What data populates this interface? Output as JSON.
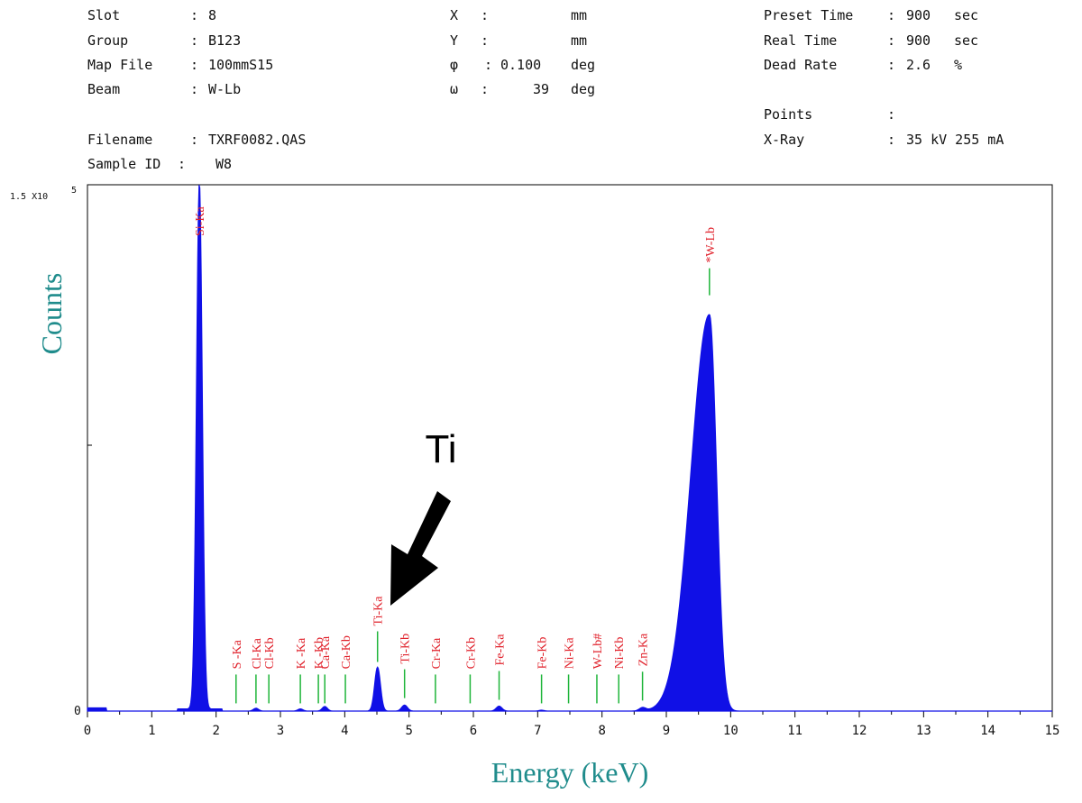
{
  "header": {
    "col1": [
      {
        "label": "Slot",
        "sep": ":",
        "value": "8"
      },
      {
        "label": "Group",
        "sep": ":",
        "value": "B123"
      },
      {
        "label": "Map File",
        "sep": ":",
        "value": "100mmS15"
      },
      {
        "label": "Beam",
        "sep": ":",
        "value": "W-Lb"
      },
      {
        "label": "Filename",
        "sep": ":",
        "value": "TXRF0082.QAS"
      },
      {
        "label": "Sample ID",
        "sep": ":",
        "value": "W8"
      }
    ],
    "col2": [
      {
        "label": "X",
        "sep": ":",
        "value": "",
        "unit": "mm"
      },
      {
        "label": "Y",
        "sep": ":",
        "value": "",
        "unit": "mm"
      },
      {
        "label": "φ",
        "sep": ":",
        "value": "0.100",
        "unit": "deg"
      },
      {
        "label": "ω",
        "sep": ":",
        "value": "39",
        "unit": "deg"
      }
    ],
    "col3": [
      {
        "label": "Preset Time",
        "sep": ":",
        "value": "900",
        "unit": "sec"
      },
      {
        "label": "Real Time",
        "sep": ":",
        "value": "900",
        "unit": "sec"
      },
      {
        "label": "Dead Rate",
        "sep": ":",
        "value": "2.6",
        "unit": "%"
      },
      {
        "label": "Points",
        "sep": ":",
        "value": ""
      },
      {
        "label": "X-Ray",
        "sep": ":",
        "value": "35 kV 255 mA"
      }
    ]
  },
  "chart_data": {
    "type": "area",
    "xlabel": "Energy (keV)",
    "ylabel": "Counts",
    "y_max_label": "1.5 X10",
    "y_max_exponent": "5",
    "y_min_label": "0",
    "xlim": [
      0,
      15
    ],
    "ylim": [
      0,
      150000
    ],
    "x_ticks": [
      "0",
      "1",
      "2",
      "3",
      "4",
      "5",
      "6",
      "7",
      "8",
      "9",
      "10",
      "11",
      "12",
      "13",
      "14",
      "15"
    ],
    "colors": {
      "spectrum": "#1010e6",
      "peak_label": "#e0202a",
      "marker": "#1fb53a",
      "axis_title": "#208c8c"
    },
    "peaks": [
      {
        "x": 1.74,
        "y": 150000,
        "width": 0.045
      },
      {
        "x": 9.67,
        "y": 113000,
        "width": 0.11
      },
      {
        "x": 4.51,
        "y": 12500,
        "width": 0.045
      },
      {
        "x": 4.93,
        "y": 1700,
        "width": 0.045
      },
      {
        "x": 3.69,
        "y": 1300,
        "width": 0.04
      },
      {
        "x": 3.31,
        "y": 600,
        "width": 0.04
      },
      {
        "x": 2.62,
        "y": 800,
        "width": 0.04
      },
      {
        "x": 6.4,
        "y": 1400,
        "width": 0.045
      },
      {
        "x": 8.63,
        "y": 900,
        "width": 0.05
      },
      {
        "x": 7.06,
        "y": 250,
        "width": 0.04
      }
    ],
    "element_markers": [
      {
        "name": "Si-Ka",
        "x": 1.74,
        "marker_y": 0,
        "color": "red"
      },
      {
        "name": "S -Ka",
        "x": 2.31,
        "marker_y": 2200
      },
      {
        "name": "Cl-Ka",
        "x": 2.62,
        "marker_y": 2200
      },
      {
        "name": "Cl-Kb",
        "x": 2.82,
        "marker_y": 2200
      },
      {
        "name": "K -Ka",
        "x": 3.31,
        "marker_y": 2200
      },
      {
        "name": "K -Kb",
        "x": 3.59,
        "marker_y": 2200
      },
      {
        "name": "Ca-Ka",
        "x": 3.69,
        "marker_y": 2200
      },
      {
        "name": "Ca-Kb",
        "x": 4.01,
        "marker_y": 2200
      },
      {
        "name": "Ti-Ka",
        "x": 4.51,
        "marker_y": 14000
      },
      {
        "name": "Ti-Kb",
        "x": 4.93,
        "marker_y": 3700
      },
      {
        "name": "Cr-Ka",
        "x": 5.41,
        "marker_y": 2200
      },
      {
        "name": "Cr-Kb",
        "x": 5.95,
        "marker_y": 2200
      },
      {
        "name": "Fe-Ka",
        "x": 6.4,
        "marker_y": 3200
      },
      {
        "name": "Fe-Kb",
        "x": 7.06,
        "marker_y": 2200
      },
      {
        "name": "Ni-Ka",
        "x": 7.48,
        "marker_y": 2200
      },
      {
        "name": "W-Lb#",
        "x": 7.92,
        "marker_y": 2200
      },
      {
        "name": "Ni-Kb",
        "x": 8.26,
        "marker_y": 2200
      },
      {
        "name": "Zn-Ka",
        "x": 8.63,
        "marker_y": 3000
      },
      {
        "name": "*W-Lb",
        "x": 9.67,
        "marker_y": 118500
      }
    ],
    "annotation": {
      "text": "Ti",
      "points_to_x": 4.6,
      "points_to_y": 29000
    }
  }
}
